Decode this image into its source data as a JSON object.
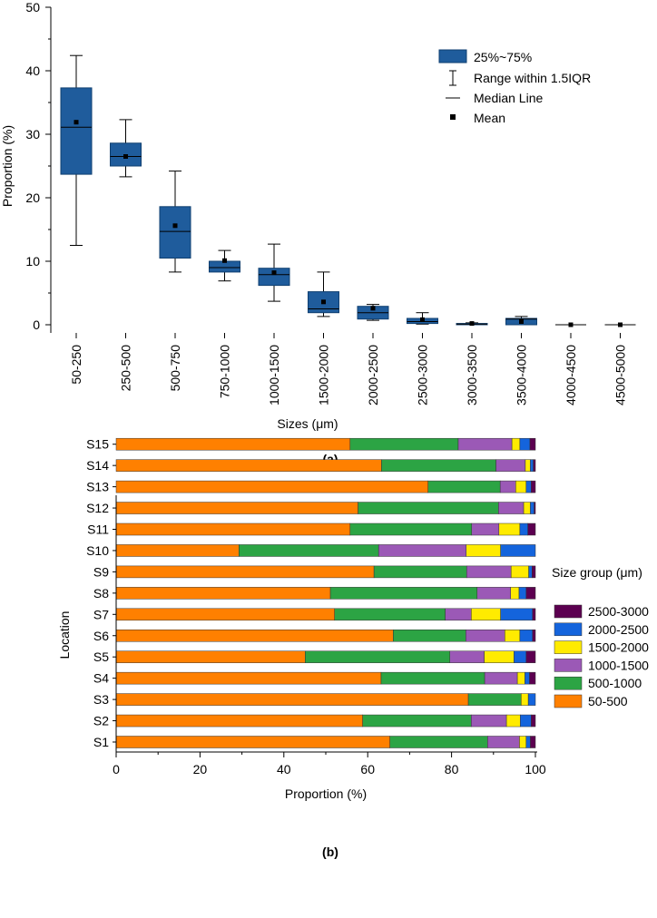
{
  "colors": {
    "box_fill": "#1f5c9c",
    "box_stroke": "#0f3f70",
    "axis": "#000000",
    "segments": [
      "#ff8000",
      "#2ca444",
      "#9b59b6",
      "#ffeb00",
      "#1464dc",
      "#5c0050"
    ]
  },
  "panel_a": {
    "caption": "(a)",
    "legend": {
      "box": "25%~75%",
      "range": "Range within 1.5IQR",
      "median": "Median Line",
      "mean": "Mean"
    }
  },
  "panel_b": {
    "caption": "(b)",
    "legend_title": "Size group (μm)"
  },
  "chart_data": [
    {
      "type": "box",
      "title": "",
      "xlabel": "Sizes (μm)",
      "ylabel": "Proportion (%)",
      "ylim": [
        0,
        50
      ],
      "yticks": [
        0,
        10,
        20,
        30,
        40,
        50
      ],
      "categories": [
        "50-250",
        "250-500",
        "500-750",
        "750-1000",
        "1000-1500",
        "1500-2000",
        "2000-2500",
        "2500-3000",
        "3000-3500",
        "3500-4000",
        "4000-4500",
        "4500-5000"
      ],
      "boxes": [
        {
          "min": 12.5,
          "q1": 23.7,
          "median": 31.1,
          "q3": 37.3,
          "max": 42.4,
          "mean": 31.9
        },
        {
          "min": 23.3,
          "q1": 25.0,
          "median": 26.5,
          "q3": 28.6,
          "max": 32.3,
          "mean": 26.5
        },
        {
          "min": 8.3,
          "q1": 10.5,
          "median": 14.7,
          "q3": 18.6,
          "max": 24.2,
          "mean": 15.6
        },
        {
          "min": 6.9,
          "q1": 8.3,
          "median": 9.0,
          "q3": 10.0,
          "max": 11.7,
          "mean": 10.1
        },
        {
          "min": 3.7,
          "q1": 6.2,
          "median": 7.9,
          "q3": 8.9,
          "max": 12.7,
          "mean": 8.2
        },
        {
          "min": 1.3,
          "q1": 1.9,
          "median": 2.5,
          "q3": 5.2,
          "max": 8.3,
          "mean": 3.6
        },
        {
          "min": 0.7,
          "q1": 0.9,
          "median": 1.9,
          "q3": 2.9,
          "max": 3.2,
          "mean": 2.6
        },
        {
          "min": 0.1,
          "q1": 0.2,
          "median": 0.5,
          "q3": 1.0,
          "max": 1.9,
          "mean": 0.8
        },
        {
          "min": 0.0,
          "q1": 0.0,
          "median": 0.1,
          "q3": 0.2,
          "max": 0.3,
          "mean": 0.2
        },
        {
          "min": 0.0,
          "q1": 0.0,
          "median": 0.9,
          "q3": 1.0,
          "max": 1.3,
          "mean": 0.5
        },
        {
          "min": 0.0,
          "q1": 0.0,
          "median": 0.0,
          "q3": 0.0,
          "max": 0.0,
          "mean": 0.0
        },
        {
          "min": 0.0,
          "q1": 0.0,
          "median": 0.0,
          "q3": 0.0,
          "max": 0.0,
          "mean": 0.0
        }
      ]
    },
    {
      "type": "bar",
      "orientation": "horizontal",
      "stacked": true,
      "title": "",
      "xlabel": "Proportion (%)",
      "ylabel": "Location",
      "xlim": [
        0,
        100
      ],
      "xticks": [
        0,
        20,
        40,
        60,
        80,
        100
      ],
      "categories": [
        "S1",
        "S2",
        "S3",
        "S4",
        "S5",
        "S6",
        "S7",
        "S8",
        "S9",
        "S10",
        "S11",
        "S12",
        "S13",
        "S14",
        "S15"
      ],
      "legend_order": [
        "2500-3000",
        "2000-2500",
        "1500-2000",
        "1000-1500",
        "500-1000",
        "50-500"
      ],
      "series": [
        {
          "name": "50-500",
          "values": [
            65.3,
            58.8,
            84.0,
            63.2,
            45.1,
            66.1,
            52.1,
            51.1,
            61.5,
            29.3,
            55.8,
            57.7,
            74.4,
            63.3,
            55.8
          ]
        },
        {
          "name": "500-1000",
          "values": [
            23.3,
            25.9,
            12.6,
            24.7,
            34.5,
            17.3,
            26.4,
            35.0,
            22.1,
            33.3,
            29.0,
            33.5,
            17.2,
            27.3,
            25.8
          ]
        },
        {
          "name": "1000-1500",
          "values": [
            7.6,
            8.4,
            0.0,
            7.8,
            8.2,
            9.3,
            6.2,
            8.0,
            10.6,
            20.9,
            6.5,
            6.0,
            3.7,
            7.0,
            12.8
          ]
        },
        {
          "name": "1500-2000",
          "values": [
            1.6,
            3.3,
            1.7,
            1.8,
            7.1,
            3.6,
            7.0,
            2.0,
            4.2,
            8.2,
            5.0,
            1.6,
            2.5,
            1.2,
            1.9
          ]
        },
        {
          "name": "2000-2500",
          "values": [
            1.0,
            2.6,
            1.7,
            1.1,
            2.9,
            3.0,
            7.6,
            1.7,
            0.8,
            8.3,
            1.9,
            0.9,
            1.2,
            0.7,
            2.4
          ]
        },
        {
          "name": "2500-3000",
          "values": [
            1.2,
            1.0,
            0.0,
            1.4,
            2.2,
            0.7,
            0.7,
            2.2,
            0.8,
            0.0,
            1.8,
            0.3,
            1.0,
            0.5,
            1.3
          ]
        }
      ]
    }
  ]
}
